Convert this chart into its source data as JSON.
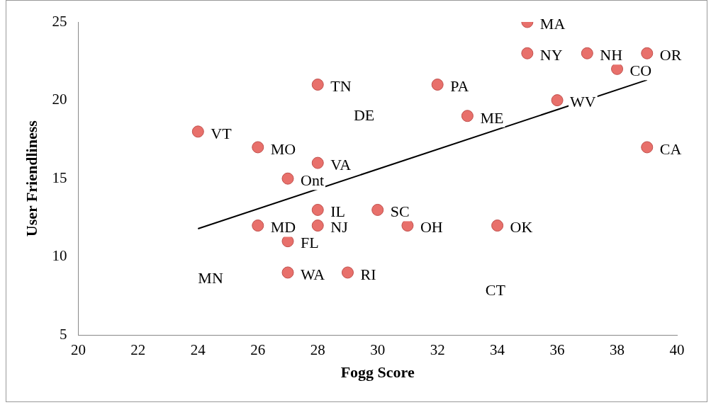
{
  "chart_data": {
    "type": "scatter",
    "xlabel": "Fogg Score",
    "ylabel": "User Friendliness",
    "xlim": [
      20,
      40
    ],
    "xticks": [
      20,
      22,
      24,
      26,
      28,
      30,
      32,
      34,
      36,
      38,
      40
    ],
    "ylim": [
      5,
      25
    ],
    "yticks": [
      5,
      10,
      15,
      20,
      25
    ],
    "grid": false,
    "legend": false,
    "series": [
      {
        "marker": "circle",
        "color": "#e8706b",
        "x": [
          24,
          26,
          27,
          28,
          28,
          32,
          33,
          35,
          35,
          37,
          39,
          38,
          36,
          39,
          26,
          27,
          28,
          28,
          30,
          31,
          34,
          27,
          29
        ],
        "values": [
          18,
          17,
          15,
          16,
          21,
          21,
          19,
          25,
          23,
          23,
          23,
          22,
          20,
          17,
          12,
          11,
          13,
          12,
          13,
          12,
          12,
          9,
          9
        ]
      },
      {
        "type": "line",
        "color": "#000000",
        "x": [
          24,
          39
        ],
        "values": [
          11.8,
          21.3
        ]
      }
    ],
    "annotations": [
      {
        "text": "VT",
        "x": 24,
        "y": 18
      },
      {
        "text": "MO",
        "x": 26,
        "y": 17
      },
      {
        "text": "Ont",
        "x": 27,
        "y": 15
      },
      {
        "text": "VA",
        "x": 28,
        "y": 16
      },
      {
        "text": "TN",
        "x": 28,
        "y": 21
      },
      {
        "text": "PA",
        "x": 32,
        "y": 21
      },
      {
        "text": "ME",
        "x": 33,
        "y": 19
      },
      {
        "text": "MA",
        "x": 35,
        "y": 25
      },
      {
        "text": "NY",
        "x": 35,
        "y": 23
      },
      {
        "text": "NH",
        "x": 37,
        "y": 23
      },
      {
        "text": "OR",
        "x": 39,
        "y": 23
      },
      {
        "text": "CO",
        "x": 38,
        "y": 22
      },
      {
        "text": "WV",
        "x": 36,
        "y": 20
      },
      {
        "text": "CA",
        "x": 39,
        "y": 17
      },
      {
        "text": "MD",
        "x": 26,
        "y": 12
      },
      {
        "text": "FL",
        "x": 27,
        "y": 11
      },
      {
        "text": "IL",
        "x": 28,
        "y": 13
      },
      {
        "text": "NJ",
        "x": 28,
        "y": 12
      },
      {
        "text": "SC",
        "x": 30,
        "y": 13
      },
      {
        "text": "OH",
        "x": 31,
        "y": 12
      },
      {
        "text": "OK",
        "x": 34,
        "y": 12
      },
      {
        "text": "WA",
        "x": 27,
        "y": 9
      },
      {
        "text": "RI",
        "x": 29,
        "y": 9
      },
      "MN",
      "DE",
      "CT"
    ]
  }
}
